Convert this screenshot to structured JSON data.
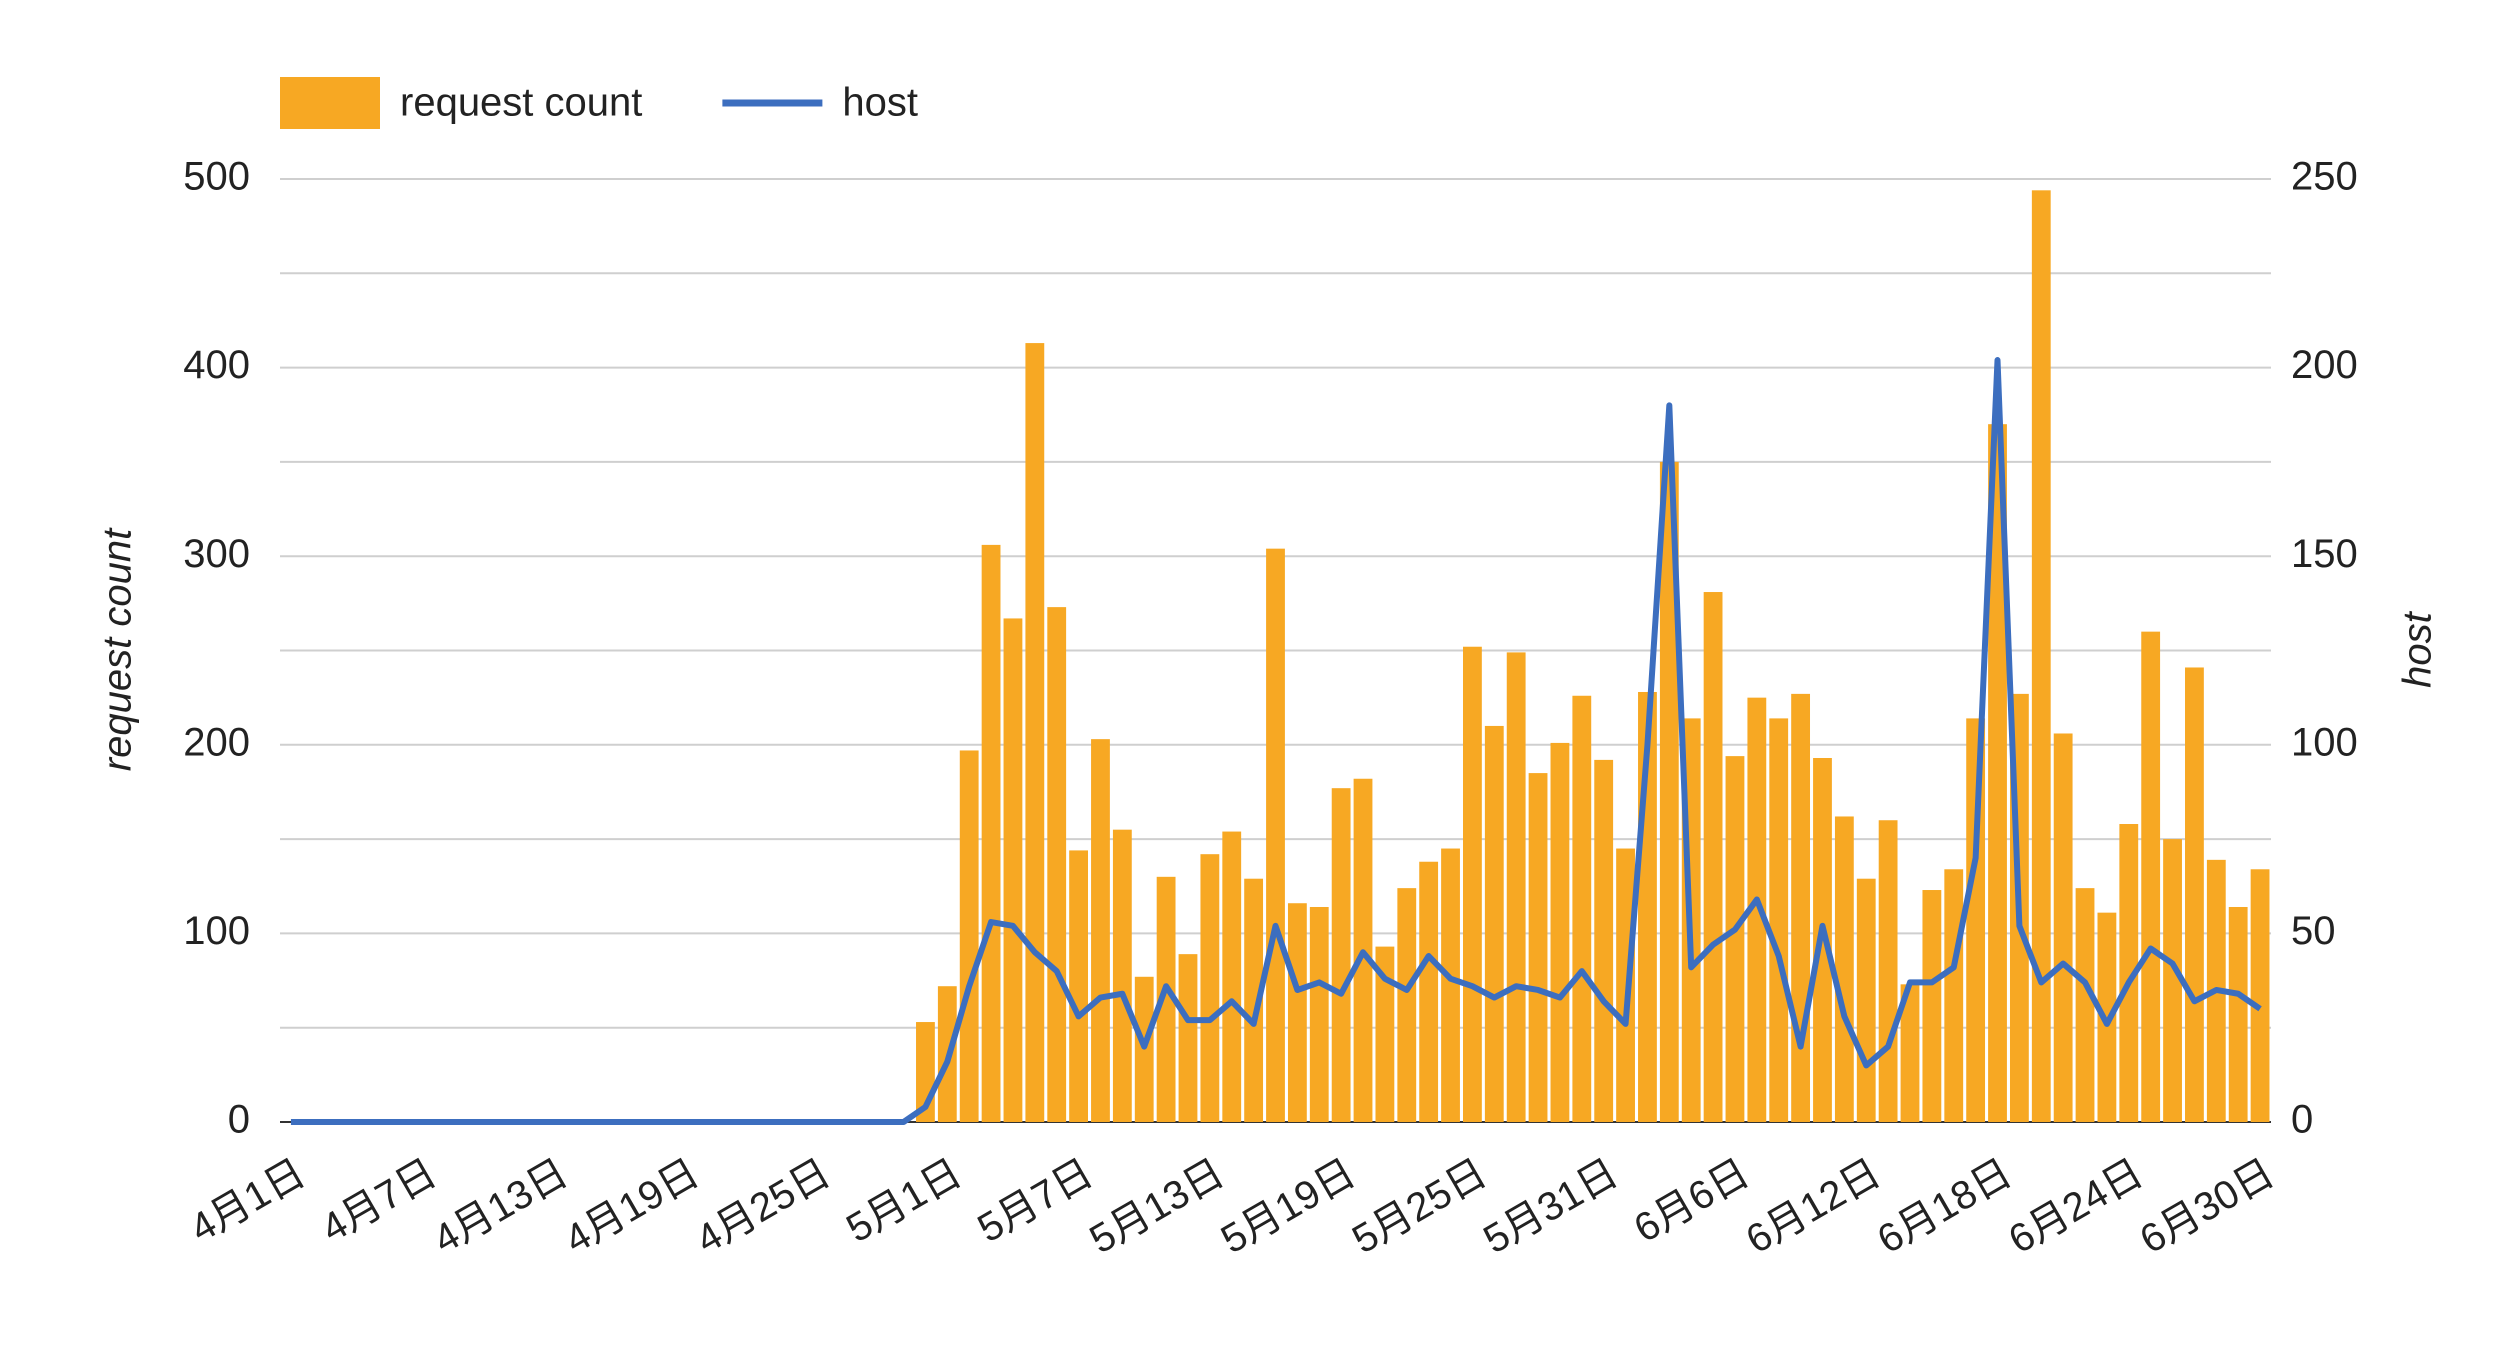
{
  "chart_data": {
    "type": "bar+line",
    "categories": [
      "4月1日",
      null,
      null,
      null,
      null,
      null,
      "4月7日",
      null,
      null,
      null,
      null,
      null,
      "4月13日",
      null,
      null,
      null,
      null,
      null,
      "4月19日",
      null,
      null,
      null,
      null,
      null,
      "4月25日",
      null,
      null,
      null,
      null,
      null,
      "5月1日",
      null,
      null,
      null,
      null,
      null,
      "5月7日",
      null,
      null,
      null,
      null,
      null,
      "5月13日",
      null,
      null,
      null,
      null,
      null,
      "5月19日",
      null,
      null,
      null,
      null,
      null,
      "5月25日",
      null,
      null,
      null,
      null,
      null,
      "5月31日",
      null,
      null,
      null,
      null,
      null,
      "6月6日",
      null,
      null,
      null,
      null,
      null,
      "6月12日",
      null,
      null,
      null,
      null,
      null,
      "6月18日",
      null,
      null,
      null,
      null,
      null,
      "6月24日",
      null,
      null,
      null,
      null,
      null,
      "6月30日"
    ],
    "series": [
      {
        "name": "request count",
        "type": "bar",
        "color": "#f7a823",
        "values": [
          0,
          0,
          0,
          0,
          0,
          0,
          0,
          0,
          0,
          0,
          0,
          0,
          0,
          0,
          0,
          0,
          0,
          0,
          0,
          0,
          0,
          0,
          0,
          0,
          0,
          0,
          0,
          0,
          0,
          53,
          72,
          197,
          306,
          267,
          413,
          273,
          144,
          203,
          155,
          77,
          130,
          89,
          142,
          154,
          129,
          304,
          116,
          114,
          177,
          182,
          93,
          124,
          138,
          145,
          252,
          210,
          249,
          185,
          201,
          226,
          192,
          145,
          228,
          350,
          214,
          281,
          194,
          225,
          214,
          227,
          193,
          162,
          129,
          160,
          73,
          123,
          134,
          214,
          370,
          227,
          494,
          206,
          124,
          111,
          158,
          260,
          150,
          241,
          139,
          114,
          134
        ]
      },
      {
        "name": "host",
        "type": "line",
        "axis": "y2",
        "color": "#3c6ebf",
        "values": [
          0,
          0,
          0,
          0,
          0,
          0,
          0,
          0,
          0,
          0,
          0,
          0,
          0,
          0,
          0,
          0,
          0,
          0,
          0,
          0,
          0,
          0,
          0,
          0,
          0,
          0,
          0,
          0,
          0,
          4,
          16,
          36,
          53,
          52,
          45,
          40,
          28,
          33,
          34,
          20,
          36,
          27,
          27,
          32,
          26,
          52,
          35,
          37,
          34,
          45,
          38,
          35,
          44,
          38,
          36,
          33,
          36,
          35,
          33,
          40,
          32,
          26,
          100,
          190,
          41,
          47,
          51,
          59,
          44,
          20,
          52,
          28,
          15,
          20,
          37,
          37,
          41,
          70,
          202,
          52,
          37,
          42,
          37,
          26,
          37,
          46,
          42,
          32,
          35,
          34,
          30
        ]
      }
    ],
    "ylabel": "request count",
    "y2label": "host",
    "ylim": [
      0,
      500
    ],
    "yticks": [
      0,
      100,
      200,
      300,
      400,
      500
    ],
    "yminorticks": [
      50,
      150,
      250,
      350,
      450
    ],
    "y2lim": [
      0,
      250
    ],
    "y2ticks": [
      0,
      50,
      100,
      150,
      200,
      250
    ],
    "grid": true,
    "legend": "top"
  }
}
